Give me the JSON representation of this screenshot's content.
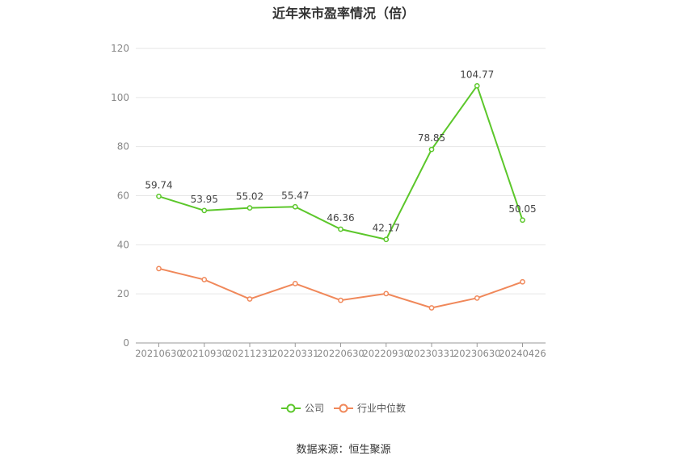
{
  "chart_data": {
    "type": "line",
    "title": "近年来市盈率情况（倍）",
    "categories": [
      "20210630",
      "20210930",
      "20211231",
      "20220331",
      "20220630",
      "20220930",
      "20230331",
      "20230630",
      "20240426"
    ],
    "series": [
      {
        "name": "公司",
        "values": [
          59.74,
          53.95,
          55.02,
          55.47,
          46.36,
          42.17,
          78.85,
          104.77,
          50.05
        ],
        "color": "#5cc72b",
        "show_labels": true
      },
      {
        "name": "行业中位数",
        "values": [
          30.3,
          25.8,
          17.9,
          24.2,
          17.4,
          20.1,
          14.3,
          18.3,
          24.9
        ],
        "color": "#f0885a",
        "show_labels": false
      }
    ],
    "ylim": [
      0,
      120
    ],
    "yticks": [
      0,
      20,
      40,
      60,
      80,
      100,
      120
    ],
    "grid": true,
    "legend_position": "bottom"
  },
  "source": "数据来源：恒生聚源"
}
